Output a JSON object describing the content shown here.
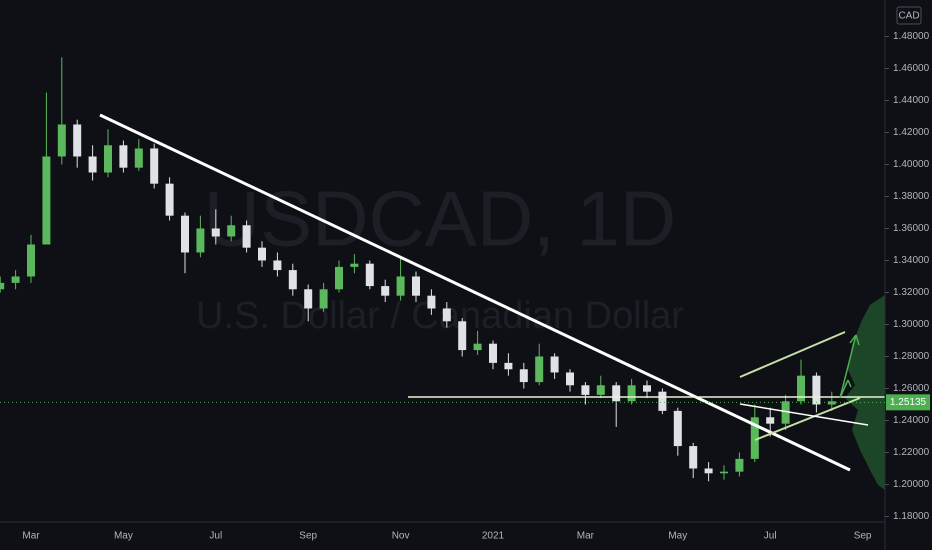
{
  "chart_data": {
    "type": "candlestick",
    "title": "USDCAD, 1D",
    "subtitle": "U.S. Dollar / Canadian Dollar",
    "currency": "CAD",
    "categories": [
      null,
      null,
      "Mar",
      null,
      null,
      null,
      null,
      null,
      "May",
      null,
      null,
      null,
      null,
      null,
      "Jul",
      null,
      null,
      null,
      null,
      null,
      "Sep",
      null,
      null,
      null,
      null,
      null,
      "Nov",
      null,
      null,
      null,
      null,
      null,
      "2021",
      null,
      null,
      null,
      null,
      null,
      "Mar",
      null,
      null,
      null,
      null,
      null,
      "May",
      null,
      null,
      null,
      null,
      null,
      "Jul",
      null,
      null,
      null,
      null,
      null,
      "Sep"
    ],
    "open": [
      1.322,
      1.326,
      1.33,
      1.35,
      1.405,
      1.425,
      1.405,
      1.395,
      1.412,
      1.398,
      1.41,
      1.388,
      1.368,
      1.345,
      1.36,
      1.355,
      1.362,
      1.348,
      1.34,
      1.334,
      1.322,
      1.31,
      1.322,
      1.336,
      1.338,
      1.324,
      1.318,
      1.33,
      1.318,
      1.31,
      1.302,
      1.284,
      1.288,
      1.276,
      1.272,
      1.264,
      1.28,
      1.27,
      1.262,
      1.256,
      1.262,
      1.252,
      1.262,
      1.258,
      1.246,
      1.224,
      1.21,
      1.207,
      1.208,
      1.216,
      1.242,
      1.238,
      1.252,
      1.268,
      1.25,
      null,
      null
    ],
    "high": [
      1.33,
      1.334,
      1.356,
      1.445,
      1.467,
      1.428,
      1.412,
      1.422,
      1.415,
      1.416,
      1.413,
      1.392,
      1.37,
      1.368,
      1.372,
      1.368,
      1.365,
      1.352,
      1.345,
      1.338,
      1.325,
      1.326,
      1.34,
      1.344,
      1.34,
      1.328,
      1.342,
      1.333,
      1.322,
      1.314,
      1.304,
      1.296,
      1.29,
      1.282,
      1.276,
      1.288,
      1.282,
      1.272,
      1.264,
      1.268,
      1.264,
      1.266,
      1.265,
      1.26,
      1.248,
      1.226,
      1.214,
      1.212,
      1.22,
      1.25,
      1.248,
      1.256,
      1.278,
      1.27,
      1.258,
      null,
      null
    ],
    "low": [
      1.32,
      1.322,
      1.326,
      1.35,
      1.4,
      1.398,
      1.39,
      1.392,
      1.395,
      1.396,
      1.385,
      1.365,
      1.332,
      1.342,
      1.35,
      1.352,
      1.345,
      1.336,
      1.33,
      1.318,
      1.302,
      1.308,
      1.32,
      1.332,
      1.322,
      1.314,
      1.315,
      1.314,
      1.306,
      1.298,
      1.28,
      1.281,
      1.272,
      1.268,
      1.26,
      1.262,
      1.266,
      1.258,
      1.25,
      1.254,
      1.236,
      1.25,
      1.254,
      1.244,
      1.218,
      1.204,
      1.202,
      1.203,
      1.205,
      1.214,
      1.23,
      1.234,
      1.25,
      1.245,
      1.246,
      null,
      null
    ],
    "close": [
      1.326,
      1.33,
      1.35,
      1.405,
      1.425,
      1.405,
      1.395,
      1.412,
      1.398,
      1.41,
      1.388,
      1.368,
      1.345,
      1.36,
      1.355,
      1.362,
      1.348,
      1.34,
      1.334,
      1.322,
      1.31,
      1.322,
      1.336,
      1.338,
      1.324,
      1.318,
      1.33,
      1.318,
      1.31,
      1.302,
      1.284,
      1.288,
      1.276,
      1.272,
      1.264,
      1.28,
      1.27,
      1.262,
      1.256,
      1.262,
      1.252,
      1.262,
      1.258,
      1.246,
      1.224,
      1.21,
      1.207,
      1.208,
      1.216,
      1.242,
      1.238,
      1.252,
      1.268,
      1.25,
      1.252,
      null,
      null
    ],
    "up_color": "#5cb85c",
    "down_color": "#dfe1e6",
    "last_price": 1.25135,
    "last_price_color": "#4caf50",
    "ylim": [
      1.1728,
      1.4928
    ],
    "yticks": [
      {
        "value": 1.18,
        "label": "1.18000"
      },
      {
        "value": 1.2,
        "label": "1.20000"
      },
      {
        "value": 1.22,
        "label": "1.22000"
      },
      {
        "value": 1.24,
        "label": "1.24000"
      },
      {
        "value": 1.26,
        "label": "1.26000"
      },
      {
        "value": 1.28,
        "label": "1.28000"
      },
      {
        "value": 1.3,
        "label": "1.30000"
      },
      {
        "value": 1.32,
        "label": "1.32000"
      },
      {
        "value": 1.34,
        "label": "1.34000"
      },
      {
        "value": 1.36,
        "label": "1.36000"
      },
      {
        "value": 1.38,
        "label": "1.38000"
      },
      {
        "value": 1.4,
        "label": "1.40000"
      },
      {
        "value": 1.42,
        "label": "1.42000"
      },
      {
        "value": 1.44,
        "label": "1.44000"
      },
      {
        "value": 1.46,
        "label": "1.46000"
      },
      {
        "value": 1.48,
        "label": "1.48000"
      }
    ]
  }
}
